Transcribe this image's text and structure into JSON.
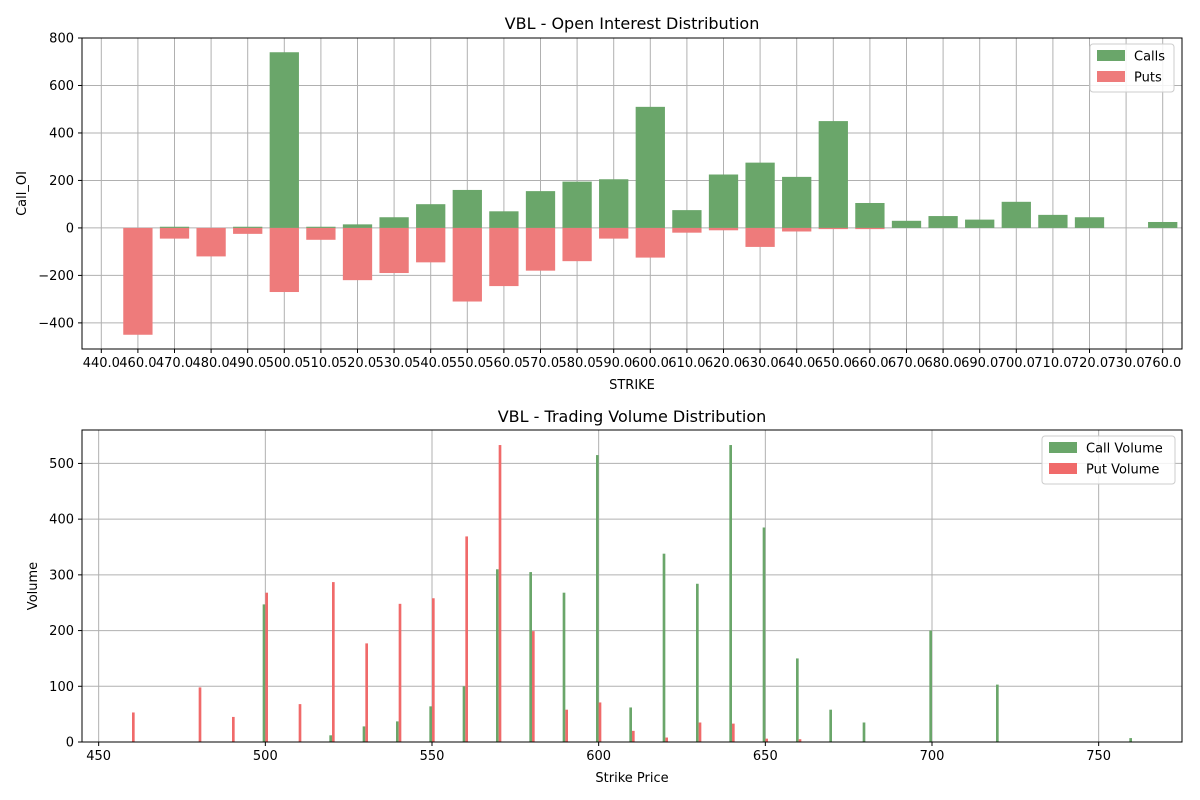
{
  "chart_data": [
    {
      "type": "bar",
      "title": "VBL - Open Interest Distribution",
      "xlabel": "STRIKE",
      "ylabel": "Call_OI",
      "ylim": [
        -510,
        800
      ],
      "yticks": [
        -400,
        -200,
        0,
        200,
        400,
        600,
        800
      ],
      "grid": true,
      "legend_position": "top-right",
      "categories": [
        "440.0",
        "460.0",
        "470.0",
        "480.0",
        "490.0",
        "500.0",
        "510.0",
        "520.0",
        "530.0",
        "540.0",
        "550.0",
        "560.0",
        "570.0",
        "580.0",
        "590.0",
        "600.0",
        "610.0",
        "620.0",
        "630.0",
        "640.0",
        "650.0",
        "660.0",
        "670.0",
        "680.0",
        "690.0",
        "700.0",
        "710.0",
        "720.0",
        "730.0",
        "760.0"
      ],
      "series": [
        {
          "name": "Calls",
          "color": "#6aa66a",
          "values": [
            0,
            0,
            5,
            0,
            5,
            740,
            5,
            15,
            45,
            100,
            160,
            70,
            155,
            195,
            205,
            510,
            75,
            225,
            275,
            215,
            450,
            105,
            30,
            50,
            35,
            110,
            55,
            45,
            0,
            25
          ]
        },
        {
          "name": "Puts",
          "color": "#ee7b7b",
          "values": [
            0,
            -450,
            -45,
            -120,
            -25,
            -270,
            -50,
            -220,
            -190,
            -145,
            -310,
            -245,
            -180,
            -140,
            -45,
            -125,
            -20,
            -10,
            -80,
            -15,
            -5,
            -5,
            0,
            0,
            0,
            0,
            0,
            0,
            0,
            0
          ]
        }
      ]
    },
    {
      "type": "bar",
      "title": "VBL - Trading Volume Distribution",
      "xlabel": "Strike Price",
      "ylabel": "Volume",
      "xlim": [
        445,
        775
      ],
      "ylim": [
        0,
        560
      ],
      "xticks": [
        450,
        500,
        550,
        600,
        650,
        700,
        750
      ],
      "yticks": [
        0,
        100,
        200,
        300,
        400,
        500
      ],
      "grid": true,
      "legend_position": "top-right",
      "x": [
        460,
        470,
        480,
        490,
        500,
        510,
        520,
        530,
        540,
        550,
        560,
        570,
        580,
        590,
        600,
        610,
        620,
        630,
        640,
        650,
        660,
        670,
        680,
        690,
        700,
        710,
        720,
        730,
        760
      ],
      "series": [
        {
          "name": "Call Volume",
          "color": "#6aa66a",
          "values": [
            0,
            0,
            0,
            0,
            247,
            0,
            12,
            28,
            37,
            64,
            100,
            310,
            305,
            268,
            515,
            62,
            338,
            284,
            533,
            385,
            150,
            58,
            35,
            0,
            200,
            0,
            103,
            0,
            7
          ]
        },
        {
          "name": "Put Volume",
          "color": "#f06a6a",
          "values": [
            53,
            0,
            98,
            45,
            268,
            68,
            287,
            177,
            248,
            258,
            369,
            533,
            199,
            58,
            71,
            20,
            8,
            35,
            33,
            6,
            5,
            0,
            0,
            0,
            0,
            0,
            0,
            0,
            0
          ]
        }
      ]
    }
  ]
}
